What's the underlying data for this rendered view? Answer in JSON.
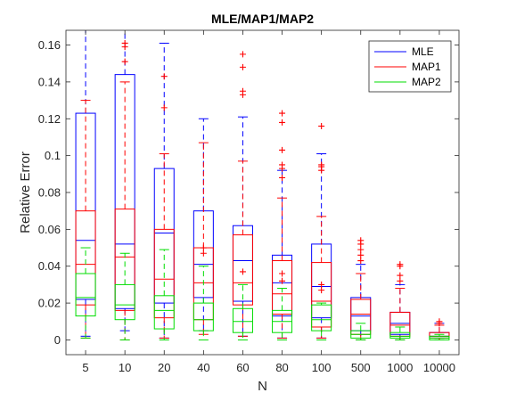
{
  "chart_data": {
    "type": "boxplot",
    "title": "MLE/MAP1/MAP2",
    "xlabel": "N",
    "ylabel": "Relative Error",
    "categories": [
      "5",
      "10",
      "20",
      "40",
      "60",
      "80",
      "100",
      "500",
      "1000",
      "10000"
    ],
    "ylim": [
      -0.008,
      0.168
    ],
    "yticks": [
      0,
      0.02,
      0.04,
      0.06,
      0.08,
      0.1,
      0.12,
      0.14,
      0.16
    ],
    "ytick_labels": [
      "0",
      "0.02",
      "0.04",
      "0.06",
      "0.08",
      "0.1",
      "0.12",
      "0.14",
      "0.16"
    ],
    "legend_position": "top-right",
    "series": [
      {
        "name": "MLE",
        "color": "#0000ff",
        "boxes": [
          {
            "q1": 0.022,
            "median": 0.054,
            "q3": 0.123,
            "whisker_low": 0.002,
            "whisker_high": 0.168,
            "outliers": []
          },
          {
            "q1": 0.017,
            "median": 0.052,
            "q3": 0.144,
            "whisker_low": 0.005,
            "whisker_high": 0.168,
            "outliers": []
          },
          {
            "q1": 0.02,
            "median": 0.058,
            "q3": 0.093,
            "whisker_low": 0.001,
            "whisker_high": 0.161,
            "outliers": []
          },
          {
            "q1": 0.023,
            "median": 0.041,
            "q3": 0.07,
            "whisker_low": 0.005,
            "whisker_high": 0.12,
            "outliers": []
          },
          {
            "q1": 0.021,
            "median": 0.043,
            "q3": 0.062,
            "whisker_low": 0.002,
            "whisker_high": 0.121,
            "outliers": []
          },
          {
            "q1": 0.013,
            "median": 0.031,
            "q3": 0.046,
            "whisker_low": 0.001,
            "whisker_high": 0.092,
            "outliers": []
          },
          {
            "q1": 0.012,
            "median": 0.029,
            "q3": 0.052,
            "whisker_low": 0.001,
            "whisker_high": 0.101,
            "outliers": []
          },
          {
            "q1": 0.005,
            "median": 0.013,
            "q3": 0.023,
            "whisker_low": 0.0,
            "whisker_high": 0.041,
            "outliers": []
          },
          {
            "q1": 0.003,
            "median": 0.009,
            "q3": 0.015,
            "whisker_low": 0.0,
            "whisker_high": 0.03,
            "outliers": []
          },
          {
            "q1": 0.001,
            "median": 0.002,
            "q3": 0.004,
            "whisker_low": 0.0,
            "whisker_high": 0.009,
            "outliers": []
          }
        ]
      },
      {
        "name": "MAP1",
        "color": "#ff0000",
        "boxes": [
          {
            "q1": 0.019,
            "median": 0.041,
            "q3": 0.07,
            "whisker_low": 0.001,
            "whisker_high": 0.13,
            "outliers": []
          },
          {
            "q1": 0.016,
            "median": 0.045,
            "q3": 0.071,
            "whisker_low": 0.0,
            "whisker_high": 0.14,
            "outliers": [
              0.151,
              0.159,
              0.161
            ]
          },
          {
            "q1": 0.012,
            "median": 0.033,
            "q3": 0.06,
            "whisker_low": 0.001,
            "whisker_high": 0.101,
            "outliers": [
              0.126,
              0.143
            ]
          },
          {
            "q1": 0.011,
            "median": 0.031,
            "q3": 0.05,
            "whisker_low": 0.003,
            "whisker_high": 0.107,
            "outliers": [
              0.047,
              0.05
            ]
          },
          {
            "q1": 0.019,
            "median": 0.031,
            "q3": 0.057,
            "whisker_low": 0.002,
            "whisker_high": 0.097,
            "outliers": [
              0.037,
              0.133,
              0.135,
              0.148,
              0.155
            ]
          },
          {
            "q1": 0.014,
            "median": 0.025,
            "q3": 0.043,
            "whisker_low": 0.001,
            "whisker_high": 0.077,
            "outliers": [
              0.032,
              0.036,
              0.088,
              0.093,
              0.095,
              0.103,
              0.118,
              0.123
            ]
          },
          {
            "q1": 0.007,
            "median": 0.021,
            "q3": 0.042,
            "whisker_low": 0.001,
            "whisker_high": 0.067,
            "outliers": [
              0.027,
              0.03,
              0.092,
              0.094,
              0.095,
              0.116
            ]
          },
          {
            "q1": 0.003,
            "median": 0.014,
            "q3": 0.022,
            "whisker_low": 0.0,
            "whisker_high": 0.036,
            "outliers": [
              0.043,
              0.046,
              0.049,
              0.052,
              0.054
            ]
          },
          {
            "q1": 0.002,
            "median": 0.008,
            "q3": 0.015,
            "whisker_low": 0.0,
            "whisker_high": 0.028,
            "outliers": [
              0.032,
              0.035,
              0.04,
              0.041
            ]
          },
          {
            "q1": 0.001,
            "median": 0.002,
            "q3": 0.004,
            "whisker_low": 0.0,
            "whisker_high": 0.008,
            "outliers": [
              0.009,
              0.01
            ]
          }
        ]
      },
      {
        "name": "MAP2",
        "color": "#00dd00",
        "boxes": [
          {
            "q1": 0.013,
            "median": 0.023,
            "q3": 0.036,
            "whisker_low": 0.001,
            "whisker_high": 0.05,
            "outliers": []
          },
          {
            "q1": 0.011,
            "median": 0.019,
            "q3": 0.03,
            "whisker_low": 0.0,
            "whisker_high": 0.047,
            "outliers": []
          },
          {
            "q1": 0.006,
            "median": 0.016,
            "q3": 0.024,
            "whisker_low": 0.0,
            "whisker_high": 0.049,
            "outliers": []
          },
          {
            "q1": 0.005,
            "median": 0.011,
            "q3": 0.02,
            "whisker_low": 0.0,
            "whisker_high": 0.04,
            "outliers": []
          },
          {
            "q1": 0.004,
            "median": 0.01,
            "q3": 0.017,
            "whisker_low": 0.0,
            "whisker_high": 0.03,
            "outliers": []
          },
          {
            "q1": 0.004,
            "median": 0.01,
            "q3": 0.016,
            "whisker_low": 0.0,
            "whisker_high": 0.028,
            "outliers": []
          },
          {
            "q1": 0.005,
            "median": 0.011,
            "q3": 0.019,
            "whisker_low": 0.0,
            "whisker_high": 0.02,
            "outliers": []
          },
          {
            "q1": 0.001,
            "median": 0.003,
            "q3": 0.005,
            "whisker_low": 0.0,
            "whisker_high": 0.009,
            "outliers": []
          },
          {
            "q1": 0.001,
            "median": 0.002,
            "q3": 0.004,
            "whisker_low": 0.0,
            "whisker_high": 0.007,
            "outliers": []
          },
          {
            "q1": 0.0,
            "median": 0.001,
            "q3": 0.002,
            "whisker_low": 0.0,
            "whisker_high": 0.003,
            "outliers": []
          }
        ]
      }
    ]
  }
}
